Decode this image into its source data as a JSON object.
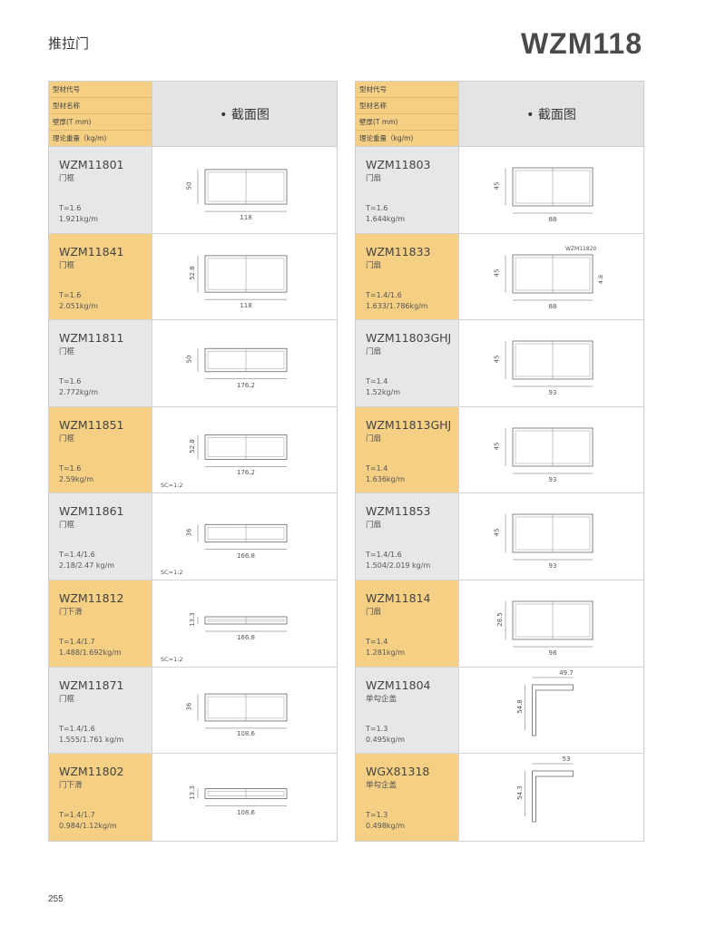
{
  "section_title": "推拉门",
  "series_code": "WZM118",
  "page_number": "255",
  "header": {
    "labels": [
      "型材代号",
      "型材名称",
      "壁厚(T mm)",
      "理论重量（kg/m)"
    ],
    "drawing_title": "• 截面图"
  },
  "colors": {
    "accent_yellow": "#f4cf84",
    "row_gray": "#e7e7ea"
  },
  "left": [
    {
      "id": "WZM11801",
      "name": "门框",
      "t": "T=1.6",
      "w": "1.921kg/m",
      "dh": "50",
      "dw": "118",
      "color": "gray"
    },
    {
      "id": "WZM11841",
      "name": "门框",
      "t": "T=1.6",
      "w": "2.051kg/m",
      "dh": "52.8",
      "dw": "118",
      "color": "yel"
    },
    {
      "id": "WZM11811",
      "name": "门框",
      "t": "T=1.6",
      "w": "2.772kg/m",
      "dh": "50",
      "dw": "176.2",
      "color": "gray"
    },
    {
      "id": "WZM11851",
      "name": "门框",
      "t": "T=1.6",
      "w": "2.59kg/m",
      "dh": "52.8",
      "dw": "176.2",
      "color": "yel",
      "scale": "SC=1:2"
    },
    {
      "id": "WZM11861",
      "name": "门框",
      "t": "T=1.4/1.6",
      "w": "2.18/2.47 kg/m",
      "dh": "36",
      "dw": "166.8",
      "color": "gray",
      "scale": "SC=1:2"
    },
    {
      "id": "WZM11812",
      "name": "门下滑",
      "t": "T=1.4/1.7",
      "w": "1.488/1.692kg/m",
      "dh": "13.3",
      "dw": "166.8",
      "color": "yel",
      "scale": "SC=1:2"
    },
    {
      "id": "WZM11871",
      "name": "门框",
      "t": "T=1.4/1.6",
      "w": "1.555/1.761 kg/m",
      "dh": "36",
      "dw": "108.6",
      "color": "gray"
    },
    {
      "id": "WZM11802",
      "name": "门下滑",
      "t": "T=1.4/1.7",
      "w": "0.984/1.12kg/m",
      "dh": "13.3",
      "dw": "108.6",
      "color": "yel"
    }
  ],
  "right": [
    {
      "id": "WZM11803",
      "name": "门扇",
      "t": "T=1.6",
      "w": "1.644kg/m",
      "dh": "45",
      "dw": "88",
      "color": "gray"
    },
    {
      "id": "WZM11833",
      "name": "门扇",
      "t": "T=1.4/1.6",
      "w": "1.633/1.786kg/m",
      "dh": "45",
      "dw": "88",
      "color": "yel",
      "extra": "WZM11820",
      "extra_dim": "4.8"
    },
    {
      "id": "WZM11803GHJ",
      "name": "门扇",
      "t": "T=1.4",
      "w": "1.52kg/m",
      "dh": "45",
      "dw": "93",
      "color": "gray"
    },
    {
      "id": "WZM11813GHJ",
      "name": "门扇",
      "t": "T=1.4",
      "w": "1.636kg/m",
      "dh": "45",
      "dw": "93",
      "color": "yel"
    },
    {
      "id": "WZM11853",
      "name": "门扇",
      "t": "T=1.4/1.6",
      "w": "1.504/2.019 kg/m",
      "dh": "45",
      "dw": "93",
      "color": "gray"
    },
    {
      "id": "WZM11814",
      "name": "门扇",
      "t": "T=1.4",
      "w": "1.281kg/m",
      "dh": "28.5",
      "dw": "98",
      "color": "yel"
    },
    {
      "id": "WZM11804",
      "name": "单勾企盖",
      "t": "T=1.3",
      "w": "0.495kg/m",
      "dh": "54.8",
      "dw": "49.7",
      "color": "gray",
      "shape": "L"
    },
    {
      "id": "WGX81318",
      "name": "单勾企盖",
      "t": "T=1.3",
      "w": "0.498kg/m",
      "dh": "54.3",
      "dw": "53",
      "color": "yel",
      "shape": "L"
    }
  ]
}
